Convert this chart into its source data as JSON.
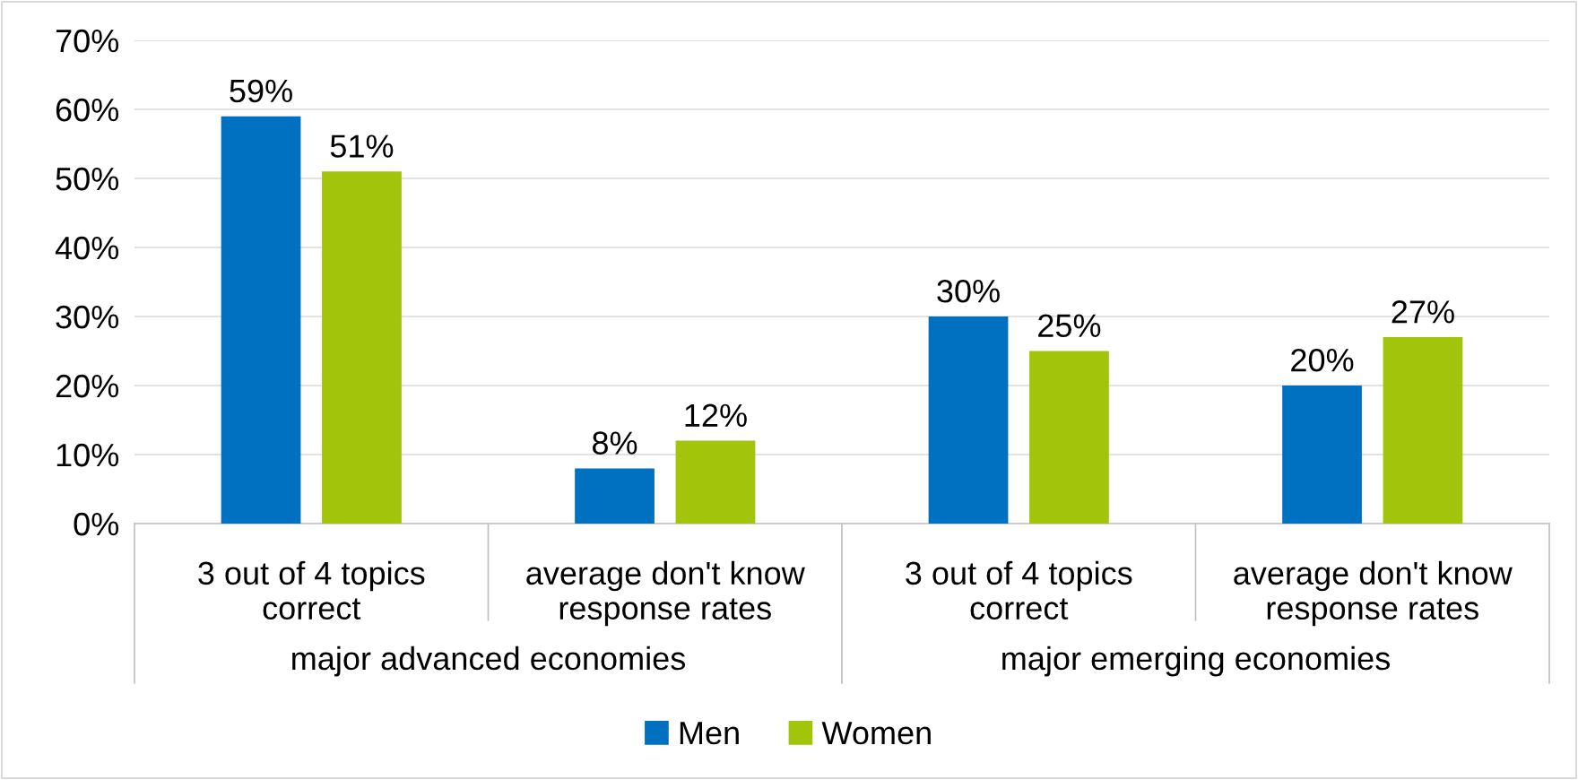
{
  "chart_data": {
    "type": "bar",
    "categories": [
      "3 out of 4 topics\ncorrect",
      "average don't know\nresponse rates",
      "3 out of 4 topics\ncorrect",
      "average don't know\nresponse rates"
    ],
    "series": [
      {
        "name": "Men",
        "color": "#0070c0",
        "values": [
          59,
          8,
          30,
          20
        ],
        "value_labels": [
          "59%",
          "8%",
          "30%",
          "20%"
        ]
      },
      {
        "name": "Women",
        "color": "#a2c40a",
        "values": [
          51,
          12,
          25,
          27
        ],
        "value_labels": [
          "51%",
          "12%",
          "25%",
          "27%"
        ]
      }
    ],
    "annotations": [
      "major advanced economies",
      "major emerging economies"
    ],
    "ylim": [
      0,
      70
    ],
    "yticks": [
      {
        "value": 0,
        "label": "0%"
      },
      {
        "value": 10,
        "label": "10%"
      },
      {
        "value": 20,
        "label": "20%"
      },
      {
        "value": 30,
        "label": "30%"
      },
      {
        "value": 40,
        "label": "40%"
      },
      {
        "value": 50,
        "label": "50%"
      },
      {
        "value": 60,
        "label": "60%"
      },
      {
        "value": 70,
        "label": "70%"
      }
    ],
    "grid": "y",
    "legend": "bottom"
  }
}
